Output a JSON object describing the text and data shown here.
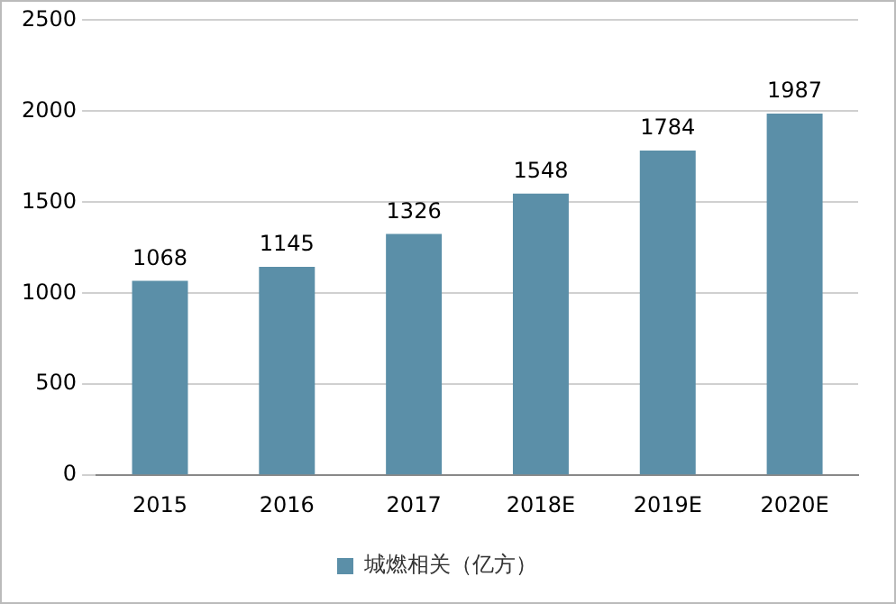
{
  "chart_data": {
    "type": "bar",
    "categories": [
      "2015",
      "2016",
      "2017",
      "2018E",
      "2019E",
      "2020E"
    ],
    "series": [
      {
        "name": "城燃相关（亿方）",
        "color": "#5b8fa8",
        "values": [
          1068,
          1145,
          1326,
          1548,
          1784,
          1987
        ]
      }
    ],
    "ylim": [
      0,
      2500
    ],
    "yticks": [
      0,
      500,
      1000,
      1500,
      2000,
      2500
    ],
    "grid": "y",
    "legend": "bottom",
    "data_labels": true
  }
}
